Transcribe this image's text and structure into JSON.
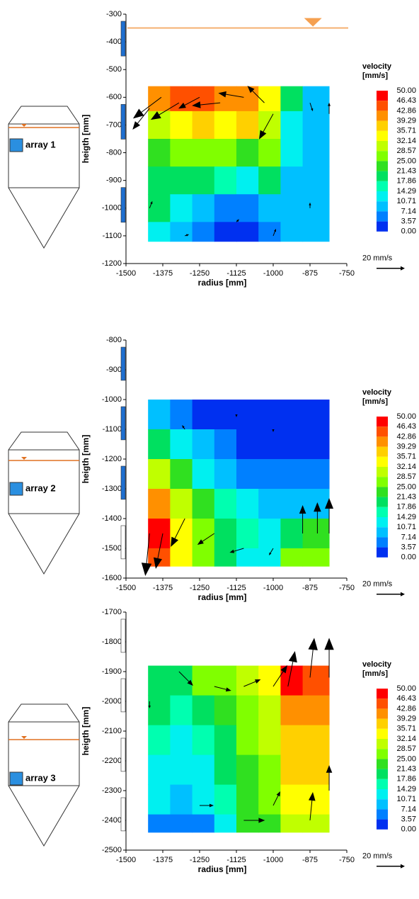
{
  "chart_data": [
    {
      "type": "contour",
      "tank_label": "array 1",
      "xlabel": "radius [mm]",
      "ylabel": "heigth [mm]",
      "xlim": [
        -1500,
        -750
      ],
      "xticks": [
        -1500,
        -1375,
        -1250,
        -1125,
        -1000,
        -875,
        -750
      ],
      "ylim": [
        -1200,
        -300
      ],
      "yticks": [
        -300,
        -400,
        -500,
        -600,
        -700,
        -800,
        -900,
        -1000,
        -1100,
        -1200
      ],
      "water_level": -350,
      "x_edges": [
        -1425,
        -1350,
        -1275,
        -1200,
        -1125,
        -1050,
        -975,
        -900,
        -810
      ],
      "y_edges": [
        -560,
        -650,
        -750,
        -850,
        -950,
        -1050,
        -1120
      ],
      "z": [
        [
          40,
          46,
          46,
          42,
          40,
          35,
          20,
          10
        ],
        [
          30,
          35,
          38,
          35,
          38,
          30,
          12,
          8
        ],
        [
          22,
          25,
          28,
          25,
          22,
          25,
          12,
          8
        ],
        [
          20,
          18,
          18,
          15,
          14,
          18,
          10,
          8
        ],
        [
          18,
          14,
          8,
          5,
          4,
          8,
          10,
          10
        ],
        [
          12,
          8,
          6,
          3,
          3,
          5,
          8,
          8
        ]
      ],
      "vectors": [
        {
          "x": -1420,
          "y": -640,
          "u": -12,
          "v": -15
        },
        {
          "x": -1380,
          "y": -600,
          "u": -20,
          "v": -15
        },
        {
          "x": -1320,
          "y": -620,
          "u": -20,
          "v": -12
        },
        {
          "x": -1250,
          "y": -600,
          "u": -15,
          "v": -8
        },
        {
          "x": -1180,
          "y": -620,
          "u": -20,
          "v": -2
        },
        {
          "x": -1100,
          "y": -600,
          "u": -18,
          "v": 3
        },
        {
          "x": -1030,
          "y": -620,
          "u": -12,
          "v": 12
        },
        {
          "x": -1000,
          "y": -660,
          "u": -10,
          "v": -18
        },
        {
          "x": -1420,
          "y": -1000,
          "u": 2,
          "v": 5
        },
        {
          "x": -1300,
          "y": -1100,
          "u": 3,
          "v": 1
        },
        {
          "x": -1125,
          "y": -1050,
          "u": 2,
          "v": 2
        },
        {
          "x": -1000,
          "y": -1100,
          "u": 2,
          "v": 5
        },
        {
          "x": -875,
          "y": -1000,
          "u": 0,
          "v": 4
        },
        {
          "x": -810,
          "y": -660,
          "u": 0,
          "v": 8
        },
        {
          "x": -875,
          "y": -620,
          "u": 2,
          "v": -6
        }
      ],
      "colorbar_title": [
        "velocity",
        "[mm/s]"
      ],
      "colorbar_ticks": [
        {
          "value": 50,
          "label": "50.00"
        },
        {
          "value": 46.43,
          "label": "46.43"
        },
        {
          "value": 42.86,
          "label": "42.86"
        },
        {
          "value": 39.29,
          "label": "39.29"
        },
        {
          "value": 35.71,
          "label": "35.71"
        },
        {
          "value": 32.14,
          "label": "32.14"
        },
        {
          "value": 28.57,
          "label": "28.57"
        },
        {
          "value": 25,
          "label": "25.00"
        },
        {
          "value": 21.43,
          "label": "21.43"
        },
        {
          "value": 17.86,
          "label": "17.86"
        },
        {
          "value": 14.29,
          "label": "14.29"
        },
        {
          "value": 10.71,
          "label": "10.71"
        },
        {
          "value": 7.14,
          "label": "7.14"
        },
        {
          "value": 3.57,
          "label": "3.57"
        },
        {
          "value": 0,
          "label": "0.00"
        }
      ],
      "colors": [
        "#ff0000",
        "#ff5000",
        "#ff9000",
        "#ffd000",
        "#ffff00",
        "#c0ff00",
        "#80ff00",
        "#30e020",
        "#00e060",
        "#00ffb0",
        "#00f0f0",
        "#00c0ff",
        "#0080ff",
        "#0030f0"
      ],
      "reference_vector": {
        "value": 20,
        "label": "20 mm/s"
      }
    },
    {
      "type": "contour",
      "tank_label": "array 2",
      "xlabel": "radius [mm]",
      "ylabel": "heigth [mm]",
      "xlim": [
        -1500,
        -750
      ],
      "xticks": [
        -1500,
        -1375,
        -1250,
        -1125,
        -1000,
        -875,
        -750
      ],
      "ylim": [
        -1600,
        -800
      ],
      "yticks": [
        -800,
        -900,
        -1000,
        -1100,
        -1200,
        -1300,
        -1400,
        -1500,
        -1600
      ],
      "x_edges": [
        -1425,
        -1350,
        -1275,
        -1200,
        -1125,
        -1050,
        -975,
        -900,
        -810
      ],
      "y_edges": [
        -1000,
        -1100,
        -1200,
        -1300,
        -1400,
        -1500,
        -1560
      ],
      "z": [
        [
          8,
          5,
          3,
          2,
          2,
          2,
          2,
          2
        ],
        [
          18,
          12,
          8,
          4,
          3,
          3,
          3,
          3
        ],
        [
          30,
          22,
          14,
          10,
          6,
          5,
          4,
          4
        ],
        [
          42,
          32,
          22,
          15,
          12,
          8,
          8,
          8
        ],
        [
          48,
          35,
          25,
          18,
          15,
          14,
          18,
          22
        ],
        [
          46,
          35,
          25,
          18,
          12,
          12,
          25,
          28
        ]
      ],
      "vectors": [
        {
          "x": -1420,
          "y": -1450,
          "u": -3,
          "v": -30
        },
        {
          "x": -1375,
          "y": -1450,
          "u": -5,
          "v": -25
        },
        {
          "x": -1300,
          "y": -1400,
          "u": -10,
          "v": -20
        },
        {
          "x": -1200,
          "y": -1450,
          "u": -12,
          "v": -8
        },
        {
          "x": -1100,
          "y": -1500,
          "u": -10,
          "v": -3
        },
        {
          "x": -1000,
          "y": -1500,
          "u": -3,
          "v": -5
        },
        {
          "x": -900,
          "y": -1450,
          "u": 0,
          "v": 20
        },
        {
          "x": -850,
          "y": -1450,
          "u": 0,
          "v": 22
        },
        {
          "x": -810,
          "y": -1450,
          "u": 0,
          "v": 25
        },
        {
          "x": -1300,
          "y": -1100,
          "u": -2,
          "v": 3
        },
        {
          "x": -1125,
          "y": -1050,
          "u": 0,
          "v": -2
        },
        {
          "x": -1000,
          "y": -1100,
          "u": 0,
          "v": -2
        }
      ],
      "colorbar_title": [
        "velocity",
        "[mm/s]"
      ],
      "colorbar_ticks": [
        {
          "value": 50,
          "label": "50.00"
        },
        {
          "value": 46.43,
          "label": "46.43"
        },
        {
          "value": 42.86,
          "label": "42.86"
        },
        {
          "value": 39.29,
          "label": "39.29"
        },
        {
          "value": 35.71,
          "label": "35.71"
        },
        {
          "value": 32.14,
          "label": "32.14"
        },
        {
          "value": 28.57,
          "label": "28.57"
        },
        {
          "value": 25,
          "label": "25.00"
        },
        {
          "value": 21.43,
          "label": "21.43"
        },
        {
          "value": 17.86,
          "label": "17.86"
        },
        {
          "value": 14.29,
          "label": "14.29"
        },
        {
          "value": 10.71,
          "label": "10.71"
        },
        {
          "value": 7.14,
          "label": "7.14"
        },
        {
          "value": 3.57,
          "label": "3.57"
        },
        {
          "value": 0,
          "label": "0.00"
        }
      ],
      "colors": [
        "#ff0000",
        "#ff5000",
        "#ff9000",
        "#ffd000",
        "#ffff00",
        "#c0ff00",
        "#80ff00",
        "#30e020",
        "#00e060",
        "#00ffb0",
        "#00f0f0",
        "#00c0ff",
        "#0080ff",
        "#0030f0"
      ],
      "reference_vector": {
        "value": 20,
        "label": "20 mm/s"
      }
    },
    {
      "type": "contour",
      "tank_label": "array 3",
      "xlabel": "radius [mm]",
      "ylabel": "heigth [mm]",
      "xlim": [
        -1500,
        -750
      ],
      "xticks": [
        -1500,
        -1375,
        -1250,
        -1125,
        -1000,
        -875,
        -750
      ],
      "ylim": [
        -2500,
        -1700
      ],
      "yticks": [
        -1700,
        -1800,
        -1900,
        -2000,
        -2100,
        -2200,
        -2300,
        -2400,
        -2500
      ],
      "x_edges": [
        -1425,
        -1350,
        -1275,
        -1200,
        -1125,
        -1050,
        -975,
        -900,
        -810
      ],
      "y_edges": [
        -1880,
        -1980,
        -2080,
        -2180,
        -2280,
        -2380,
        -2440
      ],
      "z": [
        [
          20,
          18,
          25,
          25,
          30,
          35,
          48,
          46
        ],
        [
          18,
          16,
          20,
          24,
          28,
          32,
          42,
          42
        ],
        [
          15,
          14,
          16,
          20,
          26,
          30,
          38,
          38
        ],
        [
          14,
          13,
          14,
          18,
          24,
          28,
          36,
          36
        ],
        [
          12,
          10,
          12,
          16,
          24,
          26,
          34,
          34
        ],
        [
          6,
          5,
          7,
          12,
          24,
          24,
          32,
          30
        ]
      ],
      "vectors": [
        {
          "x": -1320,
          "y": -1900,
          "u": 10,
          "v": -10
        },
        {
          "x": -1200,
          "y": -1950,
          "u": 12,
          "v": -3
        },
        {
          "x": -1100,
          "y": -1950,
          "u": 12,
          "v": 5
        },
        {
          "x": -1000,
          "y": -1950,
          "u": 10,
          "v": 15
        },
        {
          "x": -950,
          "y": -1950,
          "u": 5,
          "v": 25
        },
        {
          "x": -875,
          "y": -1920,
          "u": 3,
          "v": 28
        },
        {
          "x": -810,
          "y": -1920,
          "u": 0,
          "v": 28
        },
        {
          "x": -1250,
          "y": -2350,
          "u": 10,
          "v": 0
        },
        {
          "x": -1100,
          "y": -2400,
          "u": 15,
          "v": 0
        },
        {
          "x": -1000,
          "y": -2350,
          "u": 5,
          "v": 10
        },
        {
          "x": -875,
          "y": -2400,
          "u": 2,
          "v": 20
        },
        {
          "x": -810,
          "y": -2300,
          "u": 0,
          "v": 18
        },
        {
          "x": -1420,
          "y": -2000,
          "u": 0,
          "v": -5
        }
      ],
      "colorbar_title": [
        "velocity",
        "[mm/s]"
      ],
      "colorbar_ticks": [
        {
          "value": 50,
          "label": "50.00"
        },
        {
          "value": 46.43,
          "label": "46.43"
        },
        {
          "value": 42.86,
          "label": "42.86"
        },
        {
          "value": 39.29,
          "label": "39.29"
        },
        {
          "value": 35.71,
          "label": "35.71"
        },
        {
          "value": 32.14,
          "label": "32.14"
        },
        {
          "value": 28.57,
          "label": "28.57"
        },
        {
          "value": 25,
          "label": "25.00"
        },
        {
          "value": 21.43,
          "label": "21.43"
        },
        {
          "value": 17.86,
          "label": "17.86"
        },
        {
          "value": 14.29,
          "label": "14.29"
        },
        {
          "value": 10.71,
          "label": "10.71"
        },
        {
          "value": 7.14,
          "label": "7.14"
        },
        {
          "value": 3.57,
          "label": "3.57"
        },
        {
          "value": 0,
          "label": "0.00"
        }
      ],
      "colors": [
        "#ff0000",
        "#ff5000",
        "#ff9000",
        "#ffd000",
        "#ffff00",
        "#c0ff00",
        "#80ff00",
        "#30e020",
        "#00e060",
        "#00ffb0",
        "#00f0f0",
        "#00c0ff",
        "#0080ff",
        "#0030f0"
      ],
      "reference_vector": {
        "value": 20,
        "label": "20 mm/s"
      }
    }
  ]
}
